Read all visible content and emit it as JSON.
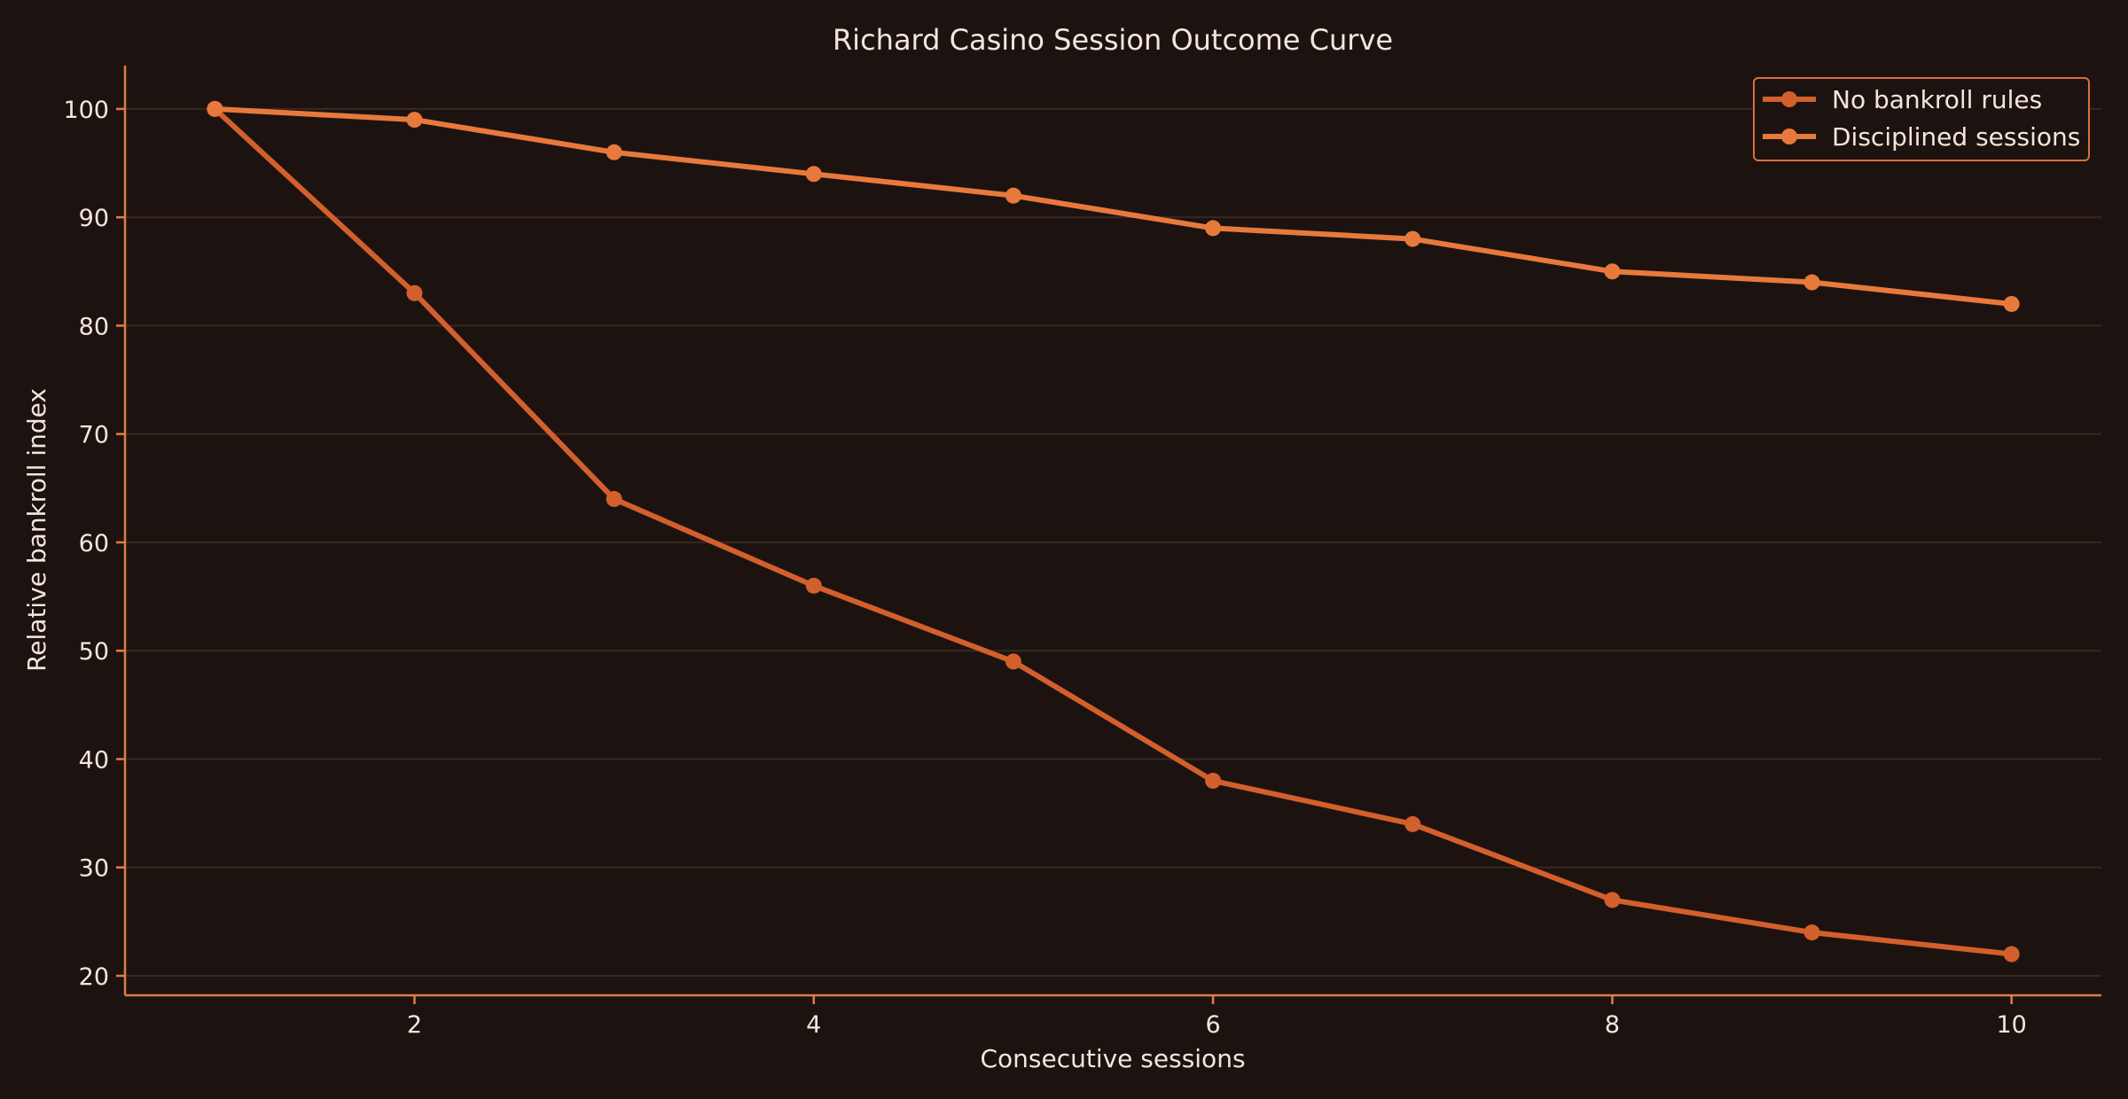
{
  "chart_data": {
    "type": "line",
    "title": "Richard Casino Session Outcome Curve",
    "xlabel": "Consecutive sessions",
    "ylabel": "Relative bankroll index",
    "x": [
      1,
      2,
      3,
      4,
      5,
      6,
      7,
      8,
      9,
      10
    ],
    "xticks": [
      2,
      4,
      6,
      8,
      10
    ],
    "yticks": [
      20,
      30,
      40,
      50,
      60,
      70,
      80,
      90,
      100
    ],
    "xlim": [
      0.55,
      10.45
    ],
    "ylim": [
      18.2,
      104
    ],
    "grid": "horizontal",
    "legend_position": "top-right",
    "series": [
      {
        "name": "No bankroll rules",
        "color": "#d35f2c",
        "values": [
          100,
          83,
          64,
          56,
          49,
          38,
          34,
          27,
          24,
          22
        ]
      },
      {
        "name": "Disciplined sessions",
        "color": "#e8793c",
        "values": [
          100,
          99,
          96,
          94,
          92,
          89,
          88,
          85,
          84,
          82
        ]
      }
    ],
    "colors": {
      "background": "#1c1310",
      "grid": "#3a2620",
      "spine": "#e07c45",
      "text": "#f3e6db",
      "legend_bg": "#1c1310",
      "legend_border": "#d8703d"
    }
  }
}
